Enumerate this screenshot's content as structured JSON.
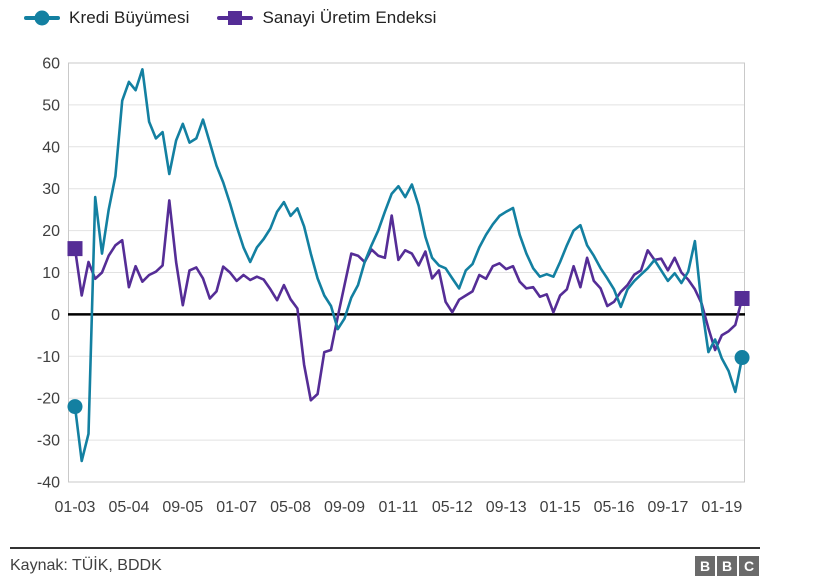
{
  "legend": [
    {
      "label": "Kredi Büyümesi",
      "color": "#1380A1",
      "marker": "circle"
    },
    {
      "label": "Sanayi Üretim Endeksi",
      "color": "#552D96",
      "marker": "square"
    }
  ],
  "footer": {
    "source": "Kaynak: TÜİK, BDDK",
    "logo_letters": [
      "B",
      "B",
      "C"
    ],
    "logo_color": "#6a6a6a"
  },
  "chart_data": {
    "type": "line",
    "title": "",
    "xlabel": "",
    "ylabel": "",
    "ylim": [
      -40,
      60
    ],
    "y_ticks": [
      60,
      50,
      40,
      30,
      20,
      10,
      0,
      -10,
      -20,
      -30,
      -40
    ],
    "grid": "horizontal",
    "zero_line": true,
    "x_tick_labels": [
      "01-03",
      "05-04",
      "09-05",
      "01-07",
      "05-08",
      "09-09",
      "01-11",
      "05-12",
      "09-13",
      "01-15",
      "05-16",
      "09-17",
      "01-19"
    ],
    "x_tick_month_interval": 16,
    "month_step": 2,
    "x_start_month": 0,
    "axis_color": "#404040",
    "grid_color": "#e2e2e2",
    "series": [
      {
        "name": "Kredi Büyümesi",
        "color": "#1380A1",
        "marker": "circle",
        "values": [
          -22,
          -35,
          -28.5,
          28,
          14.5,
          25,
          33,
          51,
          55.5,
          53.5,
          58.5,
          46,
          42,
          43.5,
          33.5,
          41.5,
          45.5,
          41,
          42,
          46.5,
          41,
          35.5,
          31.5,
          26.5,
          21,
          16,
          12.5,
          16,
          18,
          20.5,
          24.5,
          26.8,
          23.5,
          25.3,
          21,
          14.5,
          8.6,
          4.5,
          2,
          -3.5,
          -1,
          4,
          7,
          12.5,
          16.5,
          20,
          24.5,
          28.8,
          30.6,
          28,
          31,
          26,
          18.5,
          13.5,
          11.7,
          11,
          8.6,
          6.2,
          10.5,
          12,
          16,
          19,
          21.5,
          23.5,
          24.5,
          25.4,
          19,
          14.5,
          11,
          9,
          9.6,
          9,
          12.5,
          16.5,
          20,
          21.3,
          16.5,
          14,
          11,
          8.6,
          6,
          1.8,
          6,
          8,
          9.5,
          11,
          13,
          10.5,
          8,
          9.8,
          7.5,
          10.2,
          17.5,
          2.2,
          -9,
          -6,
          -10.5,
          -13.5,
          -18.5,
          -10.3
        ]
      },
      {
        "name": "Sanayi Üretim Endeksi",
        "color": "#552D96",
        "marker": "square",
        "values": [
          15.7,
          4.5,
          12.5,
          8.5,
          10,
          14,
          16.5,
          17.7,
          6.5,
          11.5,
          7.8,
          9.4,
          10.2,
          11.7,
          27.2,
          12.5,
          2.2,
          10.5,
          11.2,
          8.6,
          3.8,
          5.5,
          11.4,
          10,
          8,
          9.4,
          8.2,
          9,
          8.3,
          6,
          3.4,
          7,
          3.6,
          1.4,
          -12,
          -20.5,
          -19,
          -9,
          -8.5,
          -0.5,
          7,
          14.5,
          14,
          12.5,
          15.5,
          14,
          13.5,
          23.6,
          13,
          15.3,
          14.5,
          11.7,
          15,
          8.6,
          10.5,
          3,
          0.5,
          3.5,
          4.5,
          5.5,
          9.4,
          8.5,
          11.5,
          12.2,
          10.8,
          11.5,
          7.8,
          6.2,
          6.5,
          4.2,
          4.8,
          0.5,
          4.5,
          6,
          11.5,
          6.5,
          13.5,
          8,
          6.2,
          2,
          3,
          5.4,
          7,
          9.5,
          10.5,
          15.3,
          13,
          13.3,
          10.5,
          13.5,
          10,
          8.3,
          6,
          2.6,
          -3.3,
          -8.5,
          -5,
          -4,
          -2.5,
          3.8
        ]
      }
    ]
  }
}
